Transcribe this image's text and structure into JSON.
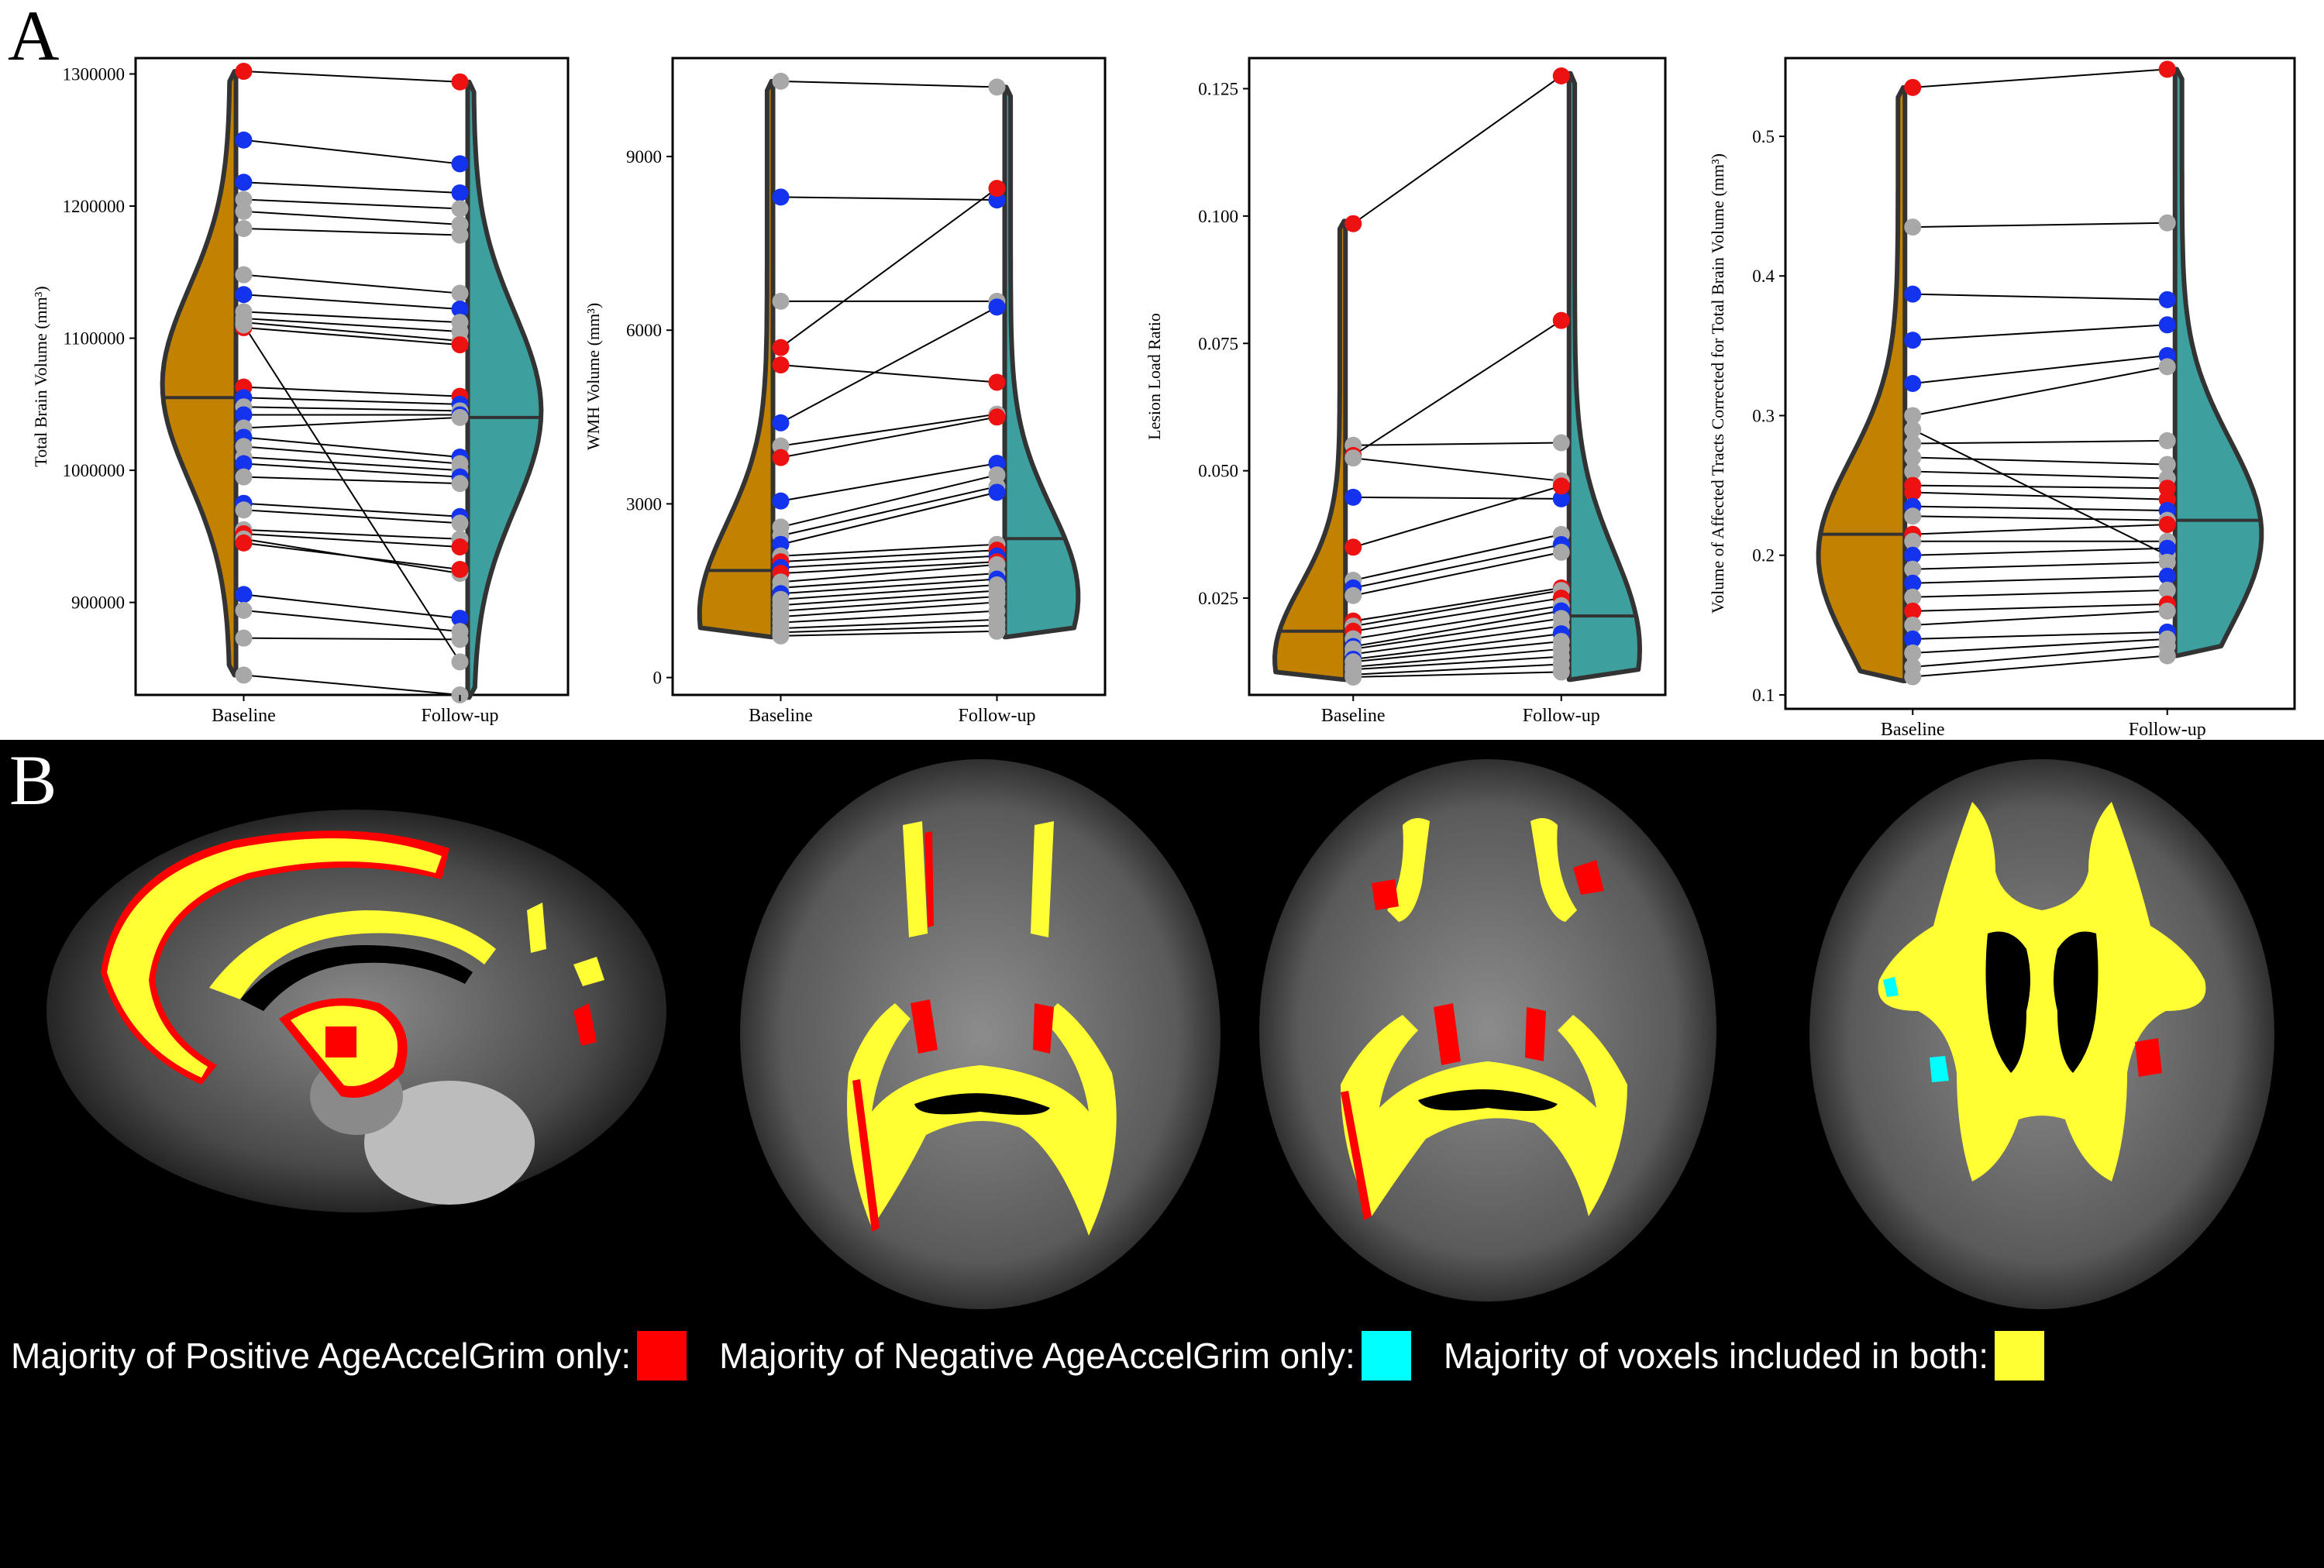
{
  "panels": {
    "a_label": "A",
    "b_label": "B"
  },
  "colors": {
    "baseline_fill": "#c28200",
    "followup_fill": "#3e9f9f",
    "positive": "#ff0000",
    "negative": "#00ffff",
    "both": "#ffff33",
    "dot_gray": "#a8a8a8",
    "dot_blue": "#1433ee",
    "dot_red": "#ee1111"
  },
  "chart_data": [
    {
      "type": "scatter",
      "subtype": "paired raincloud (half-violin + paired points)",
      "categories": [
        "Baseline",
        "Follow-up"
      ],
      "ylabel": "Total Brain Volume (mm³)",
      "ylim": [
        830000,
        1312000
      ],
      "yticks": [
        900000,
        1000000,
        1100000,
        1200000,
        1300000
      ],
      "ytick_labels": [
        "900000",
        "1000000",
        "1100000",
        "1200000",
        "1300000"
      ],
      "violin_baseline": {
        "min": 845000,
        "max": 1302000,
        "median": 1055000,
        "mode": 1065000
      },
      "violin_followup": {
        "min": 828000,
        "max": 1294000,
        "median": 1040000,
        "mode": 1045000
      },
      "pairs": [
        {
          "baseline": 1302000,
          "followup": 1294000,
          "group": "red"
        },
        {
          "baseline": 1250000,
          "followup": 1232000,
          "group": "blue"
        },
        {
          "baseline": 1218000,
          "followup": 1210000,
          "group": "blue"
        },
        {
          "baseline": 1205000,
          "followup": 1198000,
          "group": "gray"
        },
        {
          "baseline": 1196000,
          "followup": 1186000,
          "group": "gray"
        },
        {
          "baseline": 1183000,
          "followup": 1178000,
          "group": "gray"
        },
        {
          "baseline": 1148000,
          "followup": 1134000,
          "group": "gray"
        },
        {
          "baseline": 1133000,
          "followup": 1122000,
          "group": "blue"
        },
        {
          "baseline": 1120000,
          "followup": 1112000,
          "group": "gray"
        },
        {
          "baseline": 1115000,
          "followup": 1105000,
          "group": "gray"
        },
        {
          "baseline": 1112000,
          "followup": 1098000,
          "group": "gray"
        },
        {
          "baseline": 1108000,
          "followup": 1095000,
          "group": "red"
        },
        {
          "baseline": 1110000,
          "followup": 855000,
          "group": "gray"
        },
        {
          "baseline": 1063000,
          "followup": 1056000,
          "group": "red"
        },
        {
          "baseline": 1055000,
          "followup": 1050000,
          "group": "blue"
        },
        {
          "baseline": 1048000,
          "followup": 1045000,
          "group": "gray"
        },
        {
          "baseline": 1042000,
          "followup": 1042000,
          "group": "blue"
        },
        {
          "baseline": 1032000,
          "followup": 1040000,
          "group": "gray"
        },
        {
          "baseline": 1025000,
          "followup": 1010000,
          "group": "blue"
        },
        {
          "baseline": 1018000,
          "followup": 1005000,
          "group": "gray"
        },
        {
          "baseline": 1010000,
          "followup": 1000000,
          "group": "gray"
        },
        {
          "baseline": 1005000,
          "followup": 995000,
          "group": "blue"
        },
        {
          "baseline": 995000,
          "followup": 990000,
          "group": "gray"
        },
        {
          "baseline": 975000,
          "followup": 965000,
          "group": "blue"
        },
        {
          "baseline": 970000,
          "followup": 960000,
          "group": "gray"
        },
        {
          "baseline": 955000,
          "followup": 948000,
          "group": "gray"
        },
        {
          "baseline": 952000,
          "followup": 942000,
          "group": "red"
        },
        {
          "baseline": 948000,
          "followup": 922000,
          "group": "gray"
        },
        {
          "baseline": 945000,
          "followup": 925000,
          "group": "red"
        },
        {
          "baseline": 906000,
          "followup": 888000,
          "group": "blue"
        },
        {
          "baseline": 894000,
          "followup": 878000,
          "group": "gray"
        },
        {
          "baseline": 873000,
          "followup": 872000,
          "group": "gray"
        },
        {
          "baseline": 845000,
          "followup": 830000,
          "group": "gray"
        }
      ]
    },
    {
      "type": "scatter",
      "subtype": "paired raincloud (half-violin + paired points)",
      "categories": [
        "Baseline",
        "Follow-up"
      ],
      "ylabel": "WMH Volume (mm³)",
      "ylim": [
        -300,
        10700
      ],
      "yticks": [
        0,
        3000,
        6000,
        9000
      ],
      "ytick_labels": [
        "0",
        "3000",
        "6000",
        "9000"
      ],
      "violin_baseline": {
        "min": 700,
        "max": 10300,
        "median": 1850,
        "mode": 1100
      },
      "violin_followup": {
        "min": 700,
        "max": 10200,
        "median": 2400,
        "mode": 1400
      },
      "pairs": [
        {
          "baseline": 10300,
          "followup": 10200,
          "group": "gray"
        },
        {
          "baseline": 8300,
          "followup": 8250,
          "group": "blue"
        },
        {
          "baseline": 6500,
          "followup": 6500,
          "group": "gray"
        },
        {
          "baseline": 5700,
          "followup": 8450,
          "group": "red"
        },
        {
          "baseline": 5400,
          "followup": 5100,
          "group": "red"
        },
        {
          "baseline": 4400,
          "followup": 6400,
          "group": "blue"
        },
        {
          "baseline": 4000,
          "followup": 4550,
          "group": "gray"
        },
        {
          "baseline": 3800,
          "followup": 4500,
          "group": "red"
        },
        {
          "baseline": 3050,
          "followup": 3700,
          "group": "blue"
        },
        {
          "baseline": 2600,
          "followup": 3500,
          "group": "gray"
        },
        {
          "baseline": 2450,
          "followup": 3300,
          "group": "gray"
        },
        {
          "baseline": 2300,
          "followup": 3200,
          "group": "blue"
        },
        {
          "baseline": 2100,
          "followup": 2300,
          "group": "gray"
        },
        {
          "baseline": 2000,
          "followup": 2200,
          "group": "red"
        },
        {
          "baseline": 1900,
          "followup": 2100,
          "group": "blue"
        },
        {
          "baseline": 1800,
          "followup": 2000,
          "group": "red"
        },
        {
          "baseline": 1650,
          "followup": 1950,
          "group": "gray"
        },
        {
          "baseline": 1550,
          "followup": 1800,
          "group": "gray"
        },
        {
          "baseline": 1450,
          "followup": 1700,
          "group": "blue"
        },
        {
          "baseline": 1350,
          "followup": 1600,
          "group": "gray"
        },
        {
          "baseline": 1250,
          "followup": 1500,
          "group": "gray"
        },
        {
          "baseline": 1150,
          "followup": 1400,
          "group": "gray"
        },
        {
          "baseline": 1050,
          "followup": 1300,
          "group": "gray"
        },
        {
          "baseline": 950,
          "followup": 1150,
          "group": "gray"
        },
        {
          "baseline": 850,
          "followup": 1000,
          "group": "gray"
        },
        {
          "baseline": 780,
          "followup": 900,
          "group": "gray"
        },
        {
          "baseline": 720,
          "followup": 800,
          "group": "gray"
        }
      ]
    },
    {
      "type": "scatter",
      "subtype": "paired raincloud (half-violin + paired points)",
      "categories": [
        "Baseline",
        "Follow-up"
      ],
      "ylabel": "Lesion Load Ratio",
      "ylim": [
        0.006,
        0.131
      ],
      "yticks": [
        0.025,
        0.05,
        0.075,
        0.1,
        0.125
      ],
      "ytick_labels": [
        "0.025",
        "0.050",
        "0.075",
        "0.100",
        "0.125"
      ],
      "violin_baseline": {
        "min": 0.009,
        "max": 0.099,
        "median": 0.0185,
        "mode": 0.013
      },
      "violin_followup": {
        "min": 0.009,
        "max": 0.128,
        "median": 0.0215,
        "mode": 0.015
      },
      "pairs": [
        {
          "baseline": 0.0985,
          "followup": 0.1275,
          "group": "red"
        },
        {
          "baseline": 0.055,
          "followup": 0.0555,
          "group": "gray"
        },
        {
          "baseline": 0.053,
          "followup": 0.0795,
          "group": "red"
        },
        {
          "baseline": 0.0525,
          "followup": 0.048,
          "group": "gray"
        },
        {
          "baseline": 0.0448,
          "followup": 0.0445,
          "group": "blue"
        },
        {
          "baseline": 0.035,
          "followup": 0.047,
          "group": "red"
        },
        {
          "baseline": 0.0285,
          "followup": 0.0375,
          "group": "gray"
        },
        {
          "baseline": 0.027,
          "followup": 0.0355,
          "group": "blue"
        },
        {
          "baseline": 0.0255,
          "followup": 0.034,
          "group": "gray"
        },
        {
          "baseline": 0.0205,
          "followup": 0.027,
          "group": "red"
        },
        {
          "baseline": 0.0195,
          "followup": 0.0265,
          "group": "gray"
        },
        {
          "baseline": 0.0185,
          "followup": 0.025,
          "group": "red"
        },
        {
          "baseline": 0.017,
          "followup": 0.0235,
          "group": "gray"
        },
        {
          "baseline": 0.0155,
          "followup": 0.0225,
          "group": "blue"
        },
        {
          "baseline": 0.015,
          "followup": 0.021,
          "group": "gray"
        },
        {
          "baseline": 0.014,
          "followup": 0.0195,
          "group": "gray"
        },
        {
          "baseline": 0.013,
          "followup": 0.018,
          "group": "blue"
        },
        {
          "baseline": 0.0125,
          "followup": 0.0165,
          "group": "gray"
        },
        {
          "baseline": 0.0115,
          "followup": 0.015,
          "group": "gray"
        },
        {
          "baseline": 0.011,
          "followup": 0.0135,
          "group": "gray"
        },
        {
          "baseline": 0.01,
          "followup": 0.012,
          "group": "gray"
        },
        {
          "baseline": 0.0095,
          "followup": 0.0105,
          "group": "gray"
        }
      ]
    },
    {
      "type": "scatter",
      "subtype": "paired raincloud (half-violin + paired points)",
      "categories": [
        "Baseline",
        "Follow-up"
      ],
      "ylabel": "Volume of Affected Tracts Corrected for Total Brain Volume (mm³)",
      "ylim": [
        0.09,
        0.556
      ],
      "yticks": [
        0.1,
        0.2,
        0.3,
        0.4,
        0.5
      ],
      "ytick_labels": [
        "0.1",
        "0.2",
        "0.3",
        "0.4",
        "0.5"
      ],
      "violin_baseline": {
        "min": 0.11,
        "max": 0.535,
        "median": 0.215,
        "mode": 0.2
      },
      "violin_followup": {
        "min": 0.128,
        "max": 0.548,
        "median": 0.225,
        "mode": 0.215
      },
      "pairs": [
        {
          "baseline": 0.535,
          "followup": 0.548,
          "group": "red"
        },
        {
          "baseline": 0.435,
          "followup": 0.438,
          "group": "gray"
        },
        {
          "baseline": 0.387,
          "followup": 0.383,
          "group": "blue"
        },
        {
          "baseline": 0.354,
          "followup": 0.365,
          "group": "blue"
        },
        {
          "baseline": 0.323,
          "followup": 0.343,
          "group": "blue"
        },
        {
          "baseline": 0.3,
          "followup": 0.335,
          "group": "gray"
        },
        {
          "baseline": 0.29,
          "followup": 0.2,
          "group": "gray"
        },
        {
          "baseline": 0.28,
          "followup": 0.282,
          "group": "gray"
        },
        {
          "baseline": 0.27,
          "followup": 0.265,
          "group": "gray"
        },
        {
          "baseline": 0.26,
          "followup": 0.255,
          "group": "gray"
        },
        {
          "baseline": 0.25,
          "followup": 0.248,
          "group": "red"
        },
        {
          "baseline": 0.245,
          "followup": 0.24,
          "group": "red"
        },
        {
          "baseline": 0.235,
          "followup": 0.232,
          "group": "blue"
        },
        {
          "baseline": 0.228,
          "followup": 0.225,
          "group": "gray"
        },
        {
          "baseline": 0.215,
          "followup": 0.222,
          "group": "red"
        },
        {
          "baseline": 0.21,
          "followup": 0.21,
          "group": "gray"
        },
        {
          "baseline": 0.2,
          "followup": 0.205,
          "group": "blue"
        },
        {
          "baseline": 0.19,
          "followup": 0.195,
          "group": "gray"
        },
        {
          "baseline": 0.18,
          "followup": 0.185,
          "group": "blue"
        },
        {
          "baseline": 0.17,
          "followup": 0.175,
          "group": "gray"
        },
        {
          "baseline": 0.16,
          "followup": 0.165,
          "group": "red"
        },
        {
          "baseline": 0.15,
          "followup": 0.16,
          "group": "gray"
        },
        {
          "baseline": 0.14,
          "followup": 0.145,
          "group": "blue"
        },
        {
          "baseline": 0.13,
          "followup": 0.14,
          "group": "gray"
        },
        {
          "baseline": 0.12,
          "followup": 0.135,
          "group": "gray"
        },
        {
          "baseline": 0.113,
          "followup": 0.128,
          "group": "gray"
        }
      ]
    }
  ],
  "legend": {
    "items": [
      {
        "label": "Majority of Positive AgeAccelGrim only:",
        "color": "#ff0000"
      },
      {
        "label": "Majority of Negative AgeAccelGrim only:",
        "color": "#00ffff"
      },
      {
        "label": "Majority of voxels included in both:",
        "color": "#ffff33"
      }
    ]
  }
}
